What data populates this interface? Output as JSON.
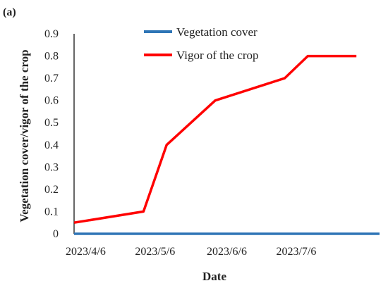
{
  "chart_data": {
    "panel_label": "(a)",
    "type": "line",
    "x": [
      "2023/4/1",
      "2023/5/1",
      "2023/5/11",
      "2023/6/1",
      "2023/7/1",
      "2023/7/11",
      "2023/8/1"
    ],
    "x_tick_labels": [
      "2023/4/6",
      "2023/5/6",
      "2023/6/6",
      "2023/7/6"
    ],
    "series": [
      {
        "name": "Vegetation cover",
        "color": "#2E75B6",
        "values": [
          0,
          0,
          0,
          0,
          0,
          0,
          0
        ]
      },
      {
        "name": "Vigor of the crop",
        "color": "#FF0000",
        "values": [
          0.05,
          0.1,
          0.4,
          0.6,
          0.7,
          0.8,
          0.8
        ]
      }
    ],
    "xlabel": "Date",
    "ylabel": "Vegetation cover/vigor of the crop",
    "ylim": [
      0,
      0.9
    ],
    "y_ticks": [
      "0",
      "0.1",
      "0.2",
      "0.3",
      "0.4",
      "0.5",
      "0.6",
      "0.7",
      "0.8",
      "0.9"
    ],
    "grid": false,
    "legend_position": "top-center"
  }
}
